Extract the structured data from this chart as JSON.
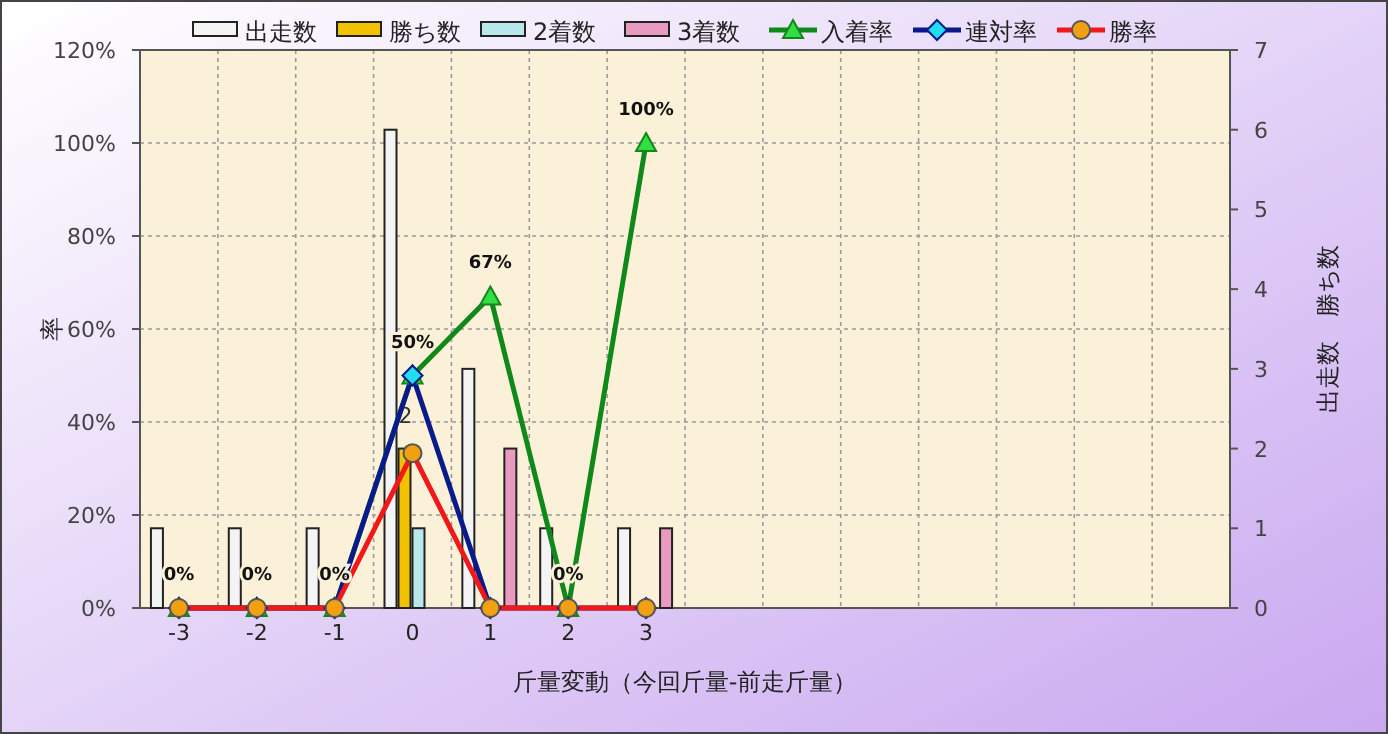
{
  "chart_data": {
    "type": "bar",
    "xlabel": "斤量変動（今回斤量-前走斤量）",
    "ylabel": "率",
    "y2label": "出走数　勝ち数",
    "categories": [
      "-3",
      "-2",
      "-1",
      "0",
      "1",
      "2",
      "3",
      null,
      null,
      null,
      null,
      null,
      null,
      null
    ],
    "ylim": [
      0,
      120
    ],
    "yticks": [
      {
        "value": 0,
        "label": "0%"
      },
      {
        "value": 20,
        "label": "20%"
      },
      {
        "value": 40,
        "label": "40%"
      },
      {
        "value": 60,
        "label": "60%"
      },
      {
        "value": 80,
        "label": "80%"
      },
      {
        "value": 100,
        "label": "100%"
      },
      {
        "value": 120,
        "label": "120%"
      }
    ],
    "y2lim": [
      0,
      7
    ],
    "y2ticks": [
      0,
      1,
      2,
      3,
      4,
      5,
      6,
      7
    ],
    "grid": true,
    "legend": "top",
    "series": [
      {
        "name": "出走数",
        "axis": "y2",
        "color": "#f4f4f4",
        "values": [
          1,
          1,
          1,
          6,
          3,
          1,
          1,
          null,
          null,
          null,
          null,
          null,
          null,
          null
        ]
      },
      {
        "name": "勝ち数",
        "axis": "y2",
        "color": "#f2c200",
        "values": [
          0,
          0,
          0,
          2,
          0,
          0,
          0,
          null,
          null,
          null,
          null,
          null,
          null,
          null
        ],
        "value_labels": [
          null,
          null,
          null,
          "2",
          null,
          null,
          null,
          null,
          null,
          null,
          null,
          null,
          null,
          null
        ]
      },
      {
        "name": "2着数",
        "axis": "y2",
        "color": "#b8e8ec",
        "values": [
          0,
          0,
          0,
          1,
          0,
          0,
          0,
          null,
          null,
          null,
          null,
          null,
          null,
          null
        ]
      },
      {
        "name": "3着数",
        "axis": "y2",
        "color": "#e89ac0",
        "values": [
          0,
          0,
          0,
          0,
          2,
          0,
          1,
          null,
          null,
          null,
          null,
          null,
          null,
          null
        ]
      },
      {
        "name": "入着率",
        "type": "line",
        "marker": "triangle",
        "color": "#10881a",
        "values": [
          0,
          0,
          0,
          50,
          67,
          0,
          100,
          null,
          null,
          null,
          null,
          null,
          null,
          null
        ],
        "value_labels": [
          "0%",
          "0%",
          "0%",
          "50%",
          "67%",
          "0%",
          "100%",
          null,
          null,
          null,
          null,
          null,
          null,
          null
        ]
      },
      {
        "name": "連対率",
        "type": "line",
        "marker": "diamond",
        "color": "#0a1a8a",
        "values": [
          0,
          0,
          0,
          50,
          0,
          0,
          0,
          null,
          null,
          null,
          null,
          null,
          null,
          null
        ]
      },
      {
        "name": "勝率",
        "type": "line",
        "marker": "circle",
        "color": "#f01818",
        "values": [
          0,
          0,
          0,
          33.3,
          0,
          0,
          0,
          null,
          null,
          null,
          null,
          null,
          null,
          null
        ]
      }
    ]
  }
}
